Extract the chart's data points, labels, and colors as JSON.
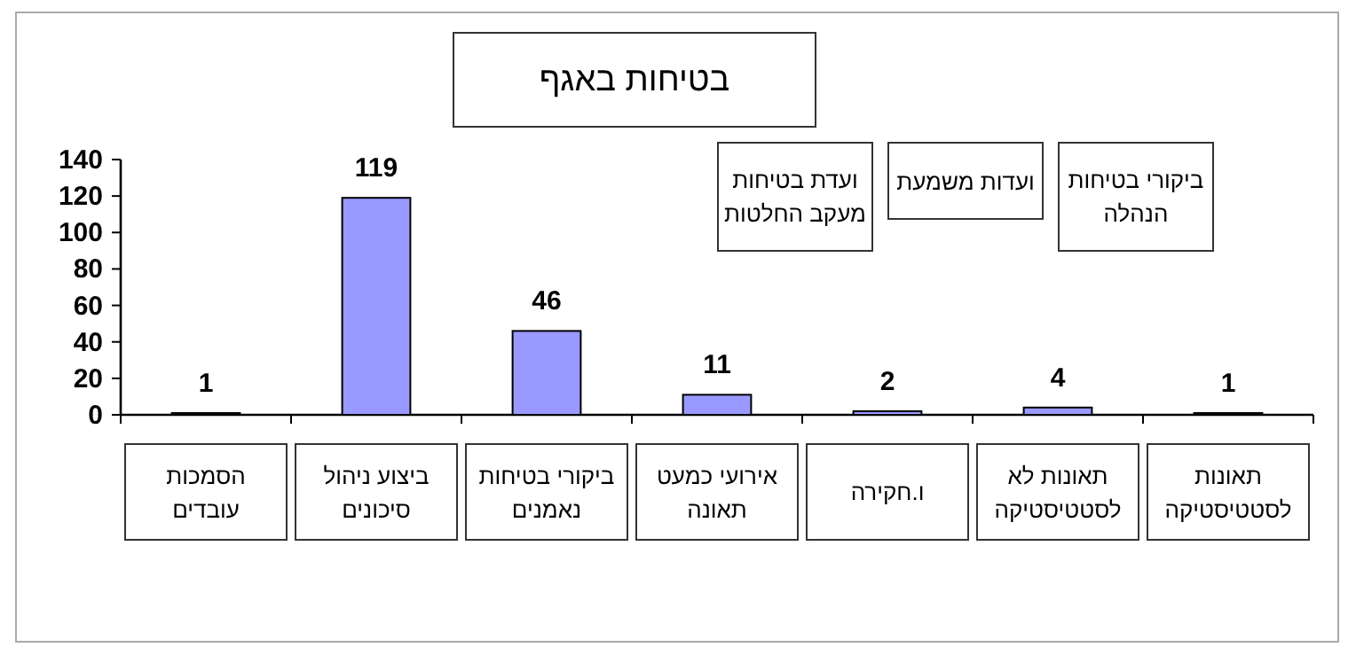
{
  "chart_data": {
    "type": "bar",
    "title": "בטיחות באגף",
    "categories": [
      "הסמכות עובדים",
      "ביצוע ניהול סיכונים",
      "ביקורי בטיחות נאמנים",
      "אירועי כמעט תאונה",
      "ו.חקירה",
      "תאונות לא לסטטיסטיקה",
      "תאונות לסטטיסטיקה"
    ],
    "values": [
      1,
      119,
      46,
      11,
      2,
      4,
      1
    ],
    "color": "#9999ff",
    "ylim": [
      0,
      140
    ],
    "yticks": [
      0,
      20,
      40,
      60,
      80,
      100,
      120,
      140
    ],
    "data_labels": true,
    "annotations": [
      "ועדת בטיחות מעקב החלטות",
      "ועדות משמעת",
      "ביקורי בטיחות הנהלה"
    ]
  }
}
